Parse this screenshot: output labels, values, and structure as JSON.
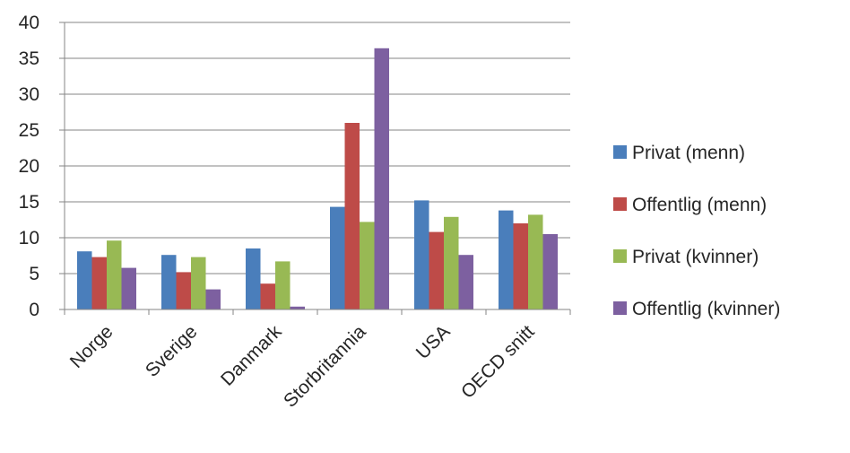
{
  "chart_data": {
    "type": "bar",
    "categories": [
      "Norge",
      "Sverige",
      "Danmark",
      "Storbritannia",
      "USA",
      "OECD snitt"
    ],
    "series": [
      {
        "name": "Privat (menn)",
        "color": "#4A7EBB",
        "values": [
          8.1,
          7.6,
          8.5,
          14.3,
          15.2,
          13.8
        ]
      },
      {
        "name": "Offentlig (menn)",
        "color": "#BE4B48",
        "values": [
          7.3,
          5.2,
          3.6,
          26.0,
          10.8,
          12.0
        ]
      },
      {
        "name": "Privat (kvinner)",
        "color": "#98B954",
        "values": [
          9.6,
          7.3,
          6.7,
          12.2,
          12.9,
          13.2
        ]
      },
      {
        "name": "Offentlig (kvinner)",
        "color": "#7D60A0",
        "values": [
          5.8,
          2.8,
          0.4,
          36.4,
          7.6,
          10.5
        ]
      }
    ],
    "yticks": [
      0,
      5,
      10,
      15,
      20,
      25,
      30,
      35,
      40
    ],
    "ylim": [
      0,
      40
    ],
    "grid": true,
    "legend_position": "right",
    "title": "",
    "xlabel": "",
    "ylabel": ""
  }
}
